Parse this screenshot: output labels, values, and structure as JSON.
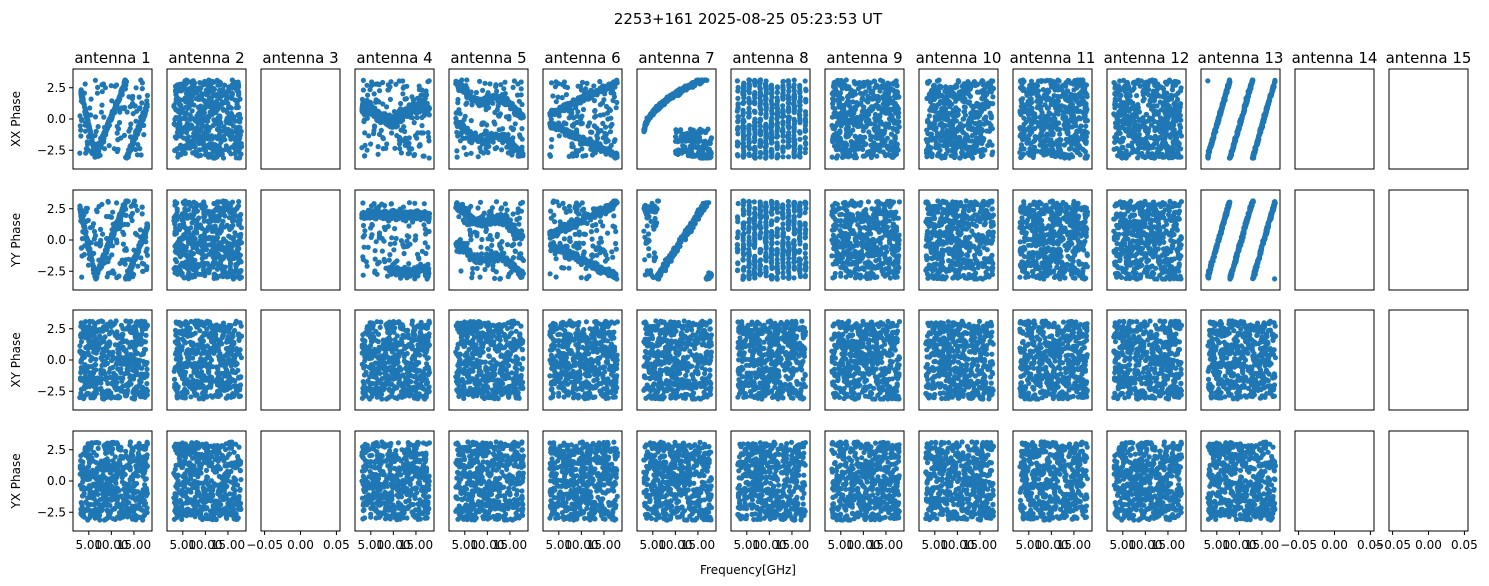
{
  "figure": {
    "title": "2253+161 2025-08-25 05:23:53 UT",
    "xlabel": "Frequency[GHz]",
    "marker_color": "#1f77b4"
  },
  "chart_data": {
    "type": "scatter",
    "antennas": [
      "antenna 1",
      "antenna 2",
      "antenna 3",
      "antenna 4",
      "antenna 5",
      "antenna 6",
      "antenna 7",
      "antenna 8",
      "antenna 9",
      "antenna 10",
      "antenna 11",
      "antenna 12",
      "antenna 13",
      "antenna 14",
      "antenna 15"
    ],
    "rows": [
      {
        "ylabel": "XX Phase",
        "ylim": [
          -4,
          4
        ],
        "yticks": [
          "2.5",
          "0.0",
          "−2.5"
        ],
        "ytick_values": [
          2.5,
          0.0,
          -2.5
        ]
      },
      {
        "ylabel": "YY Phase",
        "ylim": [
          -4,
          4
        ],
        "yticks": [
          "2.5",
          "0.0",
          "−2.5"
        ],
        "ytick_values": [
          2.5,
          0.0,
          -2.5
        ]
      },
      {
        "ylabel": "XY Phase",
        "ylim": [
          -4,
          4
        ],
        "yticks": [
          "2.5",
          "0.0",
          "−2.5"
        ],
        "ytick_values": [
          2.5,
          0.0,
          -2.5
        ]
      },
      {
        "ylabel": "YX Phase",
        "ylim": [
          -4,
          4
        ],
        "yticks": [
          "2.5",
          "0.0",
          "−2.5"
        ],
        "ytick_values": [
          2.5,
          0.0,
          -2.5
        ]
      }
    ],
    "xlim_data": [
      1.5,
      19.0
    ],
    "xticks_data": [
      "5.00",
      "10.00",
      "15.00"
    ],
    "xtick_values_data": [
      5.0,
      10.0,
      15.0
    ],
    "xlim_empty": [
      -0.055,
      0.055
    ],
    "xticks_empty": [
      "−0.05",
      "0.00",
      "0.05"
    ],
    "xtick_values_empty": [
      -0.05,
      0.0,
      0.05
    ],
    "freq_range": [
      3.0,
      18.0
    ],
    "phase_range": [
      -3.1416,
      3.1416
    ],
    "empty_antennas": [
      "antenna 3",
      "antenna 14",
      "antenna 15"
    ],
    "patterns": [
      [
        "v",
        "random",
        "empty",
        "band_mid",
        "double",
        "cshape",
        "arc",
        "stripes",
        "random",
        "random",
        "random",
        "random",
        "diag",
        "empty",
        "empty"
      ],
      [
        "v",
        "random",
        "empty",
        "band_drop",
        "double",
        "cshape",
        "arcdiag",
        "stripes",
        "random",
        "random",
        "random",
        "random",
        "diag",
        "empty",
        "empty"
      ],
      [
        "random",
        "random",
        "empty",
        "random",
        "random",
        "random",
        "random",
        "random",
        "random",
        "random",
        "random",
        "random",
        "random",
        "empty",
        "empty"
      ],
      [
        "random",
        "random",
        "empty",
        "random",
        "random",
        "random",
        "random",
        "random",
        "random",
        "random",
        "random",
        "random",
        "random",
        "empty",
        "empty"
      ]
    ]
  }
}
